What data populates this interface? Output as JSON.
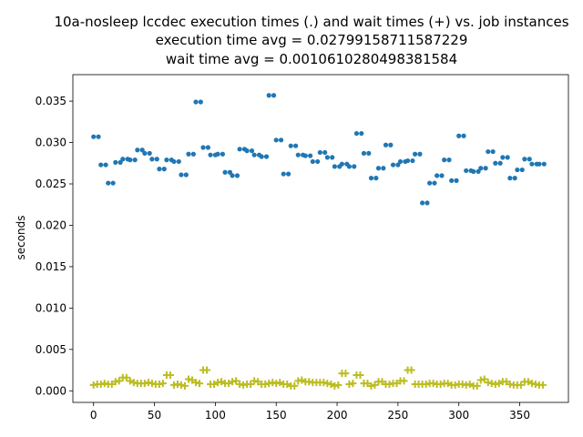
{
  "chart_data": {
    "type": "scatter",
    "title": [
      "10a-nosleep lccdec execution times (.) and wait times (+) vs. job instances",
      "execution time avg = 0.02799158711587229",
      "wait time avg = 0.0010610280498381584"
    ],
    "xlabel": "",
    "ylabel": "seconds",
    "xlim": [
      -17,
      390
    ],
    "ylim": [
      -0.0014,
      0.0382
    ],
    "x_ticks": [
      0,
      50,
      100,
      150,
      200,
      250,
      300,
      350
    ],
    "y_ticks": [
      0.0,
      0.005,
      0.01,
      0.015,
      0.02,
      0.025,
      0.03,
      0.035
    ],
    "y_tick_labels": [
      "0.000",
      "0.005",
      "0.010",
      "0.015",
      "0.020",
      "0.025",
      "0.030",
      "0.035"
    ],
    "grid": false,
    "series": [
      {
        "marker": "dot",
        "color": "#1f77b4",
        "points": [
          [
            0,
            0.0307
          ],
          [
            4,
            0.0307
          ],
          [
            6,
            0.0273
          ],
          [
            10,
            0.0273
          ],
          [
            12,
            0.0251
          ],
          [
            16,
            0.0251
          ],
          [
            18,
            0.0276
          ],
          [
            22,
            0.0276
          ],
          [
            24,
            0.028
          ],
          [
            28,
            0.028
          ],
          [
            30,
            0.0279
          ],
          [
            34,
            0.0279
          ],
          [
            36,
            0.0291
          ],
          [
            40,
            0.0291
          ],
          [
            42,
            0.0287
          ],
          [
            46,
            0.0287
          ],
          [
            48,
            0.028
          ],
          [
            52,
            0.028
          ],
          [
            54,
            0.0268
          ],
          [
            58,
            0.0268
          ],
          [
            60,
            0.0279
          ],
          [
            64,
            0.0279
          ],
          [
            66,
            0.0277
          ],
          [
            70,
            0.0277
          ],
          [
            72,
            0.0261
          ],
          [
            76,
            0.0261
          ],
          [
            78,
            0.0286
          ],
          [
            82,
            0.0286
          ],
          [
            84,
            0.0349
          ],
          [
            88,
            0.0349
          ],
          [
            90,
            0.0294
          ],
          [
            94,
            0.0294
          ],
          [
            96,
            0.0285
          ],
          [
            100,
            0.0285
          ],
          [
            102,
            0.0286
          ],
          [
            106,
            0.0286
          ],
          [
            108,
            0.0264
          ],
          [
            112,
            0.0264
          ],
          [
            114,
            0.026
          ],
          [
            118,
            0.026
          ],
          [
            120,
            0.0292
          ],
          [
            124,
            0.0292
          ],
          [
            126,
            0.029
          ],
          [
            130,
            0.029
          ],
          [
            132,
            0.0285
          ],
          [
            136,
            0.0285
          ],
          [
            138,
            0.0283
          ],
          [
            142,
            0.0283
          ],
          [
            144,
            0.0357
          ],
          [
            148,
            0.0357
          ],
          [
            150,
            0.0303
          ],
          [
            154,
            0.0303
          ],
          [
            156,
            0.0262
          ],
          [
            160,
            0.0262
          ],
          [
            162,
            0.0296
          ],
          [
            166,
            0.0296
          ],
          [
            168,
            0.0285
          ],
          [
            172,
            0.0285
          ],
          [
            174,
            0.0284
          ],
          [
            178,
            0.0284
          ],
          [
            180,
            0.0277
          ],
          [
            184,
            0.0277
          ],
          [
            186,
            0.0288
          ],
          [
            190,
            0.0288
          ],
          [
            192,
            0.0282
          ],
          [
            196,
            0.0282
          ],
          [
            198,
            0.0271
          ],
          [
            202,
            0.0271
          ],
          [
            204,
            0.0274
          ],
          [
            208,
            0.0274
          ],
          [
            210,
            0.0271
          ],
          [
            214,
            0.0271
          ],
          [
            216,
            0.0311
          ],
          [
            220,
            0.0311
          ],
          [
            222,
            0.0287
          ],
          [
            226,
            0.0287
          ],
          [
            228,
            0.0257
          ],
          [
            232,
            0.0257
          ],
          [
            234,
            0.0269
          ],
          [
            238,
            0.0269
          ],
          [
            240,
            0.0297
          ],
          [
            244,
            0.0297
          ],
          [
            246,
            0.0273
          ],
          [
            250,
            0.0273
          ],
          [
            252,
            0.0277
          ],
          [
            256,
            0.0277
          ],
          [
            258,
            0.0278
          ],
          [
            262,
            0.0278
          ],
          [
            264,
            0.0286
          ],
          [
            268,
            0.0286
          ],
          [
            270,
            0.0227
          ],
          [
            274,
            0.0227
          ],
          [
            276,
            0.0251
          ],
          [
            280,
            0.0251
          ],
          [
            282,
            0.026
          ],
          [
            286,
            0.026
          ],
          [
            288,
            0.0279
          ],
          [
            292,
            0.0279
          ],
          [
            294,
            0.0254
          ],
          [
            298,
            0.0254
          ],
          [
            300,
            0.0308
          ],
          [
            304,
            0.0308
          ],
          [
            306,
            0.0266
          ],
          [
            310,
            0.0266
          ],
          [
            312,
            0.0265
          ],
          [
            316,
            0.0265
          ],
          [
            318,
            0.0269
          ],
          [
            322,
            0.0269
          ],
          [
            324,
            0.0289
          ],
          [
            328,
            0.0289
          ],
          [
            330,
            0.0275
          ],
          [
            334,
            0.0275
          ],
          [
            336,
            0.0282
          ],
          [
            340,
            0.0282
          ],
          [
            342,
            0.0257
          ],
          [
            346,
            0.0257
          ],
          [
            348,
            0.0267
          ],
          [
            352,
            0.0267
          ],
          [
            354,
            0.028
          ],
          [
            358,
            0.028
          ],
          [
            360,
            0.0274
          ],
          [
            364,
            0.0274
          ],
          [
            366,
            0.0274
          ],
          [
            370,
            0.0274
          ]
        ]
      },
      {
        "marker": "plus",
        "color": "#bcbd22",
        "points": [
          [
            0,
            0.0007
          ],
          [
            3,
            0.0008
          ],
          [
            6,
            0.0008
          ],
          [
            9,
            0.0009
          ],
          [
            12,
            0.0008
          ],
          [
            15,
            0.0008
          ],
          [
            18,
            0.0011
          ],
          [
            21,
            0.0012
          ],
          [
            24,
            0.0016
          ],
          [
            27,
            0.0016
          ],
          [
            30,
            0.0012
          ],
          [
            33,
            0.001
          ],
          [
            36,
            0.0009
          ],
          [
            39,
            0.0009
          ],
          [
            42,
            0.0009
          ],
          [
            45,
            0.001
          ],
          [
            48,
            0.0009
          ],
          [
            51,
            0.0008
          ],
          [
            54,
            0.0008
          ],
          [
            57,
            0.0009
          ],
          [
            60,
            0.0019
          ],
          [
            63,
            0.0019
          ],
          [
            66,
            0.0007
          ],
          [
            69,
            0.0008
          ],
          [
            72,
            0.0007
          ],
          [
            75,
            0.0006
          ],
          [
            78,
            0.0014
          ],
          [
            81,
            0.0013
          ],
          [
            84,
            0.001
          ],
          [
            87,
            0.0009
          ],
          [
            90,
            0.0025
          ],
          [
            93,
            0.0025
          ],
          [
            96,
            0.0008
          ],
          [
            99,
            0.0008
          ],
          [
            102,
            0.001
          ],
          [
            105,
            0.0011
          ],
          [
            108,
            0.0009
          ],
          [
            111,
            0.0009
          ],
          [
            114,
            0.0011
          ],
          [
            117,
            0.0012
          ],
          [
            120,
            0.0008
          ],
          [
            123,
            0.0007
          ],
          [
            126,
            0.0008
          ],
          [
            129,
            0.0008
          ],
          [
            132,
            0.0012
          ],
          [
            135,
            0.0011
          ],
          [
            138,
            0.0008
          ],
          [
            141,
            0.0008
          ],
          [
            144,
            0.0009
          ],
          [
            147,
            0.001
          ],
          [
            150,
            0.0009
          ],
          [
            153,
            0.001
          ],
          [
            156,
            0.0008
          ],
          [
            159,
            0.0008
          ],
          [
            162,
            0.0006
          ],
          [
            165,
            0.0006
          ],
          [
            168,
            0.0012
          ],
          [
            171,
            0.0013
          ],
          [
            174,
            0.0011
          ],
          [
            177,
            0.0011
          ],
          [
            180,
            0.001
          ],
          [
            183,
            0.001
          ],
          [
            186,
            0.001
          ],
          [
            189,
            0.001
          ],
          [
            192,
            0.0009
          ],
          [
            195,
            0.0008
          ],
          [
            198,
            0.0006
          ],
          [
            201,
            0.0007
          ],
          [
            204,
            0.0021
          ],
          [
            207,
            0.0021
          ],
          [
            210,
            0.0008
          ],
          [
            213,
            0.0009
          ],
          [
            216,
            0.0019
          ],
          [
            219,
            0.0019
          ],
          [
            222,
            0.0009
          ],
          [
            225,
            0.0009
          ],
          [
            228,
            0.0006
          ],
          [
            231,
            0.0007
          ],
          [
            234,
            0.0011
          ],
          [
            237,
            0.0011
          ],
          [
            240,
            0.0008
          ],
          [
            243,
            0.0008
          ],
          [
            246,
            0.0009
          ],
          [
            249,
            0.0009
          ],
          [
            252,
            0.0012
          ],
          [
            255,
            0.0012
          ],
          [
            258,
            0.0025
          ],
          [
            261,
            0.0025
          ],
          [
            264,
            0.0008
          ],
          [
            267,
            0.0008
          ],
          [
            270,
            0.0008
          ],
          [
            273,
            0.0008
          ],
          [
            276,
            0.0009
          ],
          [
            279,
            0.0009
          ],
          [
            282,
            0.0008
          ],
          [
            285,
            0.0008
          ],
          [
            288,
            0.0009
          ],
          [
            291,
            0.0009
          ],
          [
            294,
            0.0007
          ],
          [
            297,
            0.0007
          ],
          [
            300,
            0.0008
          ],
          [
            303,
            0.0008
          ],
          [
            306,
            0.0007
          ],
          [
            309,
            0.0008
          ],
          [
            312,
            0.0006
          ],
          [
            315,
            0.0006
          ],
          [
            318,
            0.0013
          ],
          [
            321,
            0.0014
          ],
          [
            324,
            0.001
          ],
          [
            327,
            0.0009
          ],
          [
            330,
            0.0008
          ],
          [
            333,
            0.0009
          ],
          [
            336,
            0.0011
          ],
          [
            339,
            0.0011
          ],
          [
            342,
            0.0008
          ],
          [
            345,
            0.0007
          ],
          [
            348,
            0.0007
          ],
          [
            351,
            0.0007
          ],
          [
            354,
            0.0011
          ],
          [
            357,
            0.0011
          ],
          [
            360,
            0.0009
          ],
          [
            363,
            0.0008
          ],
          [
            366,
            0.0007
          ],
          [
            369,
            0.0007
          ]
        ]
      }
    ]
  }
}
